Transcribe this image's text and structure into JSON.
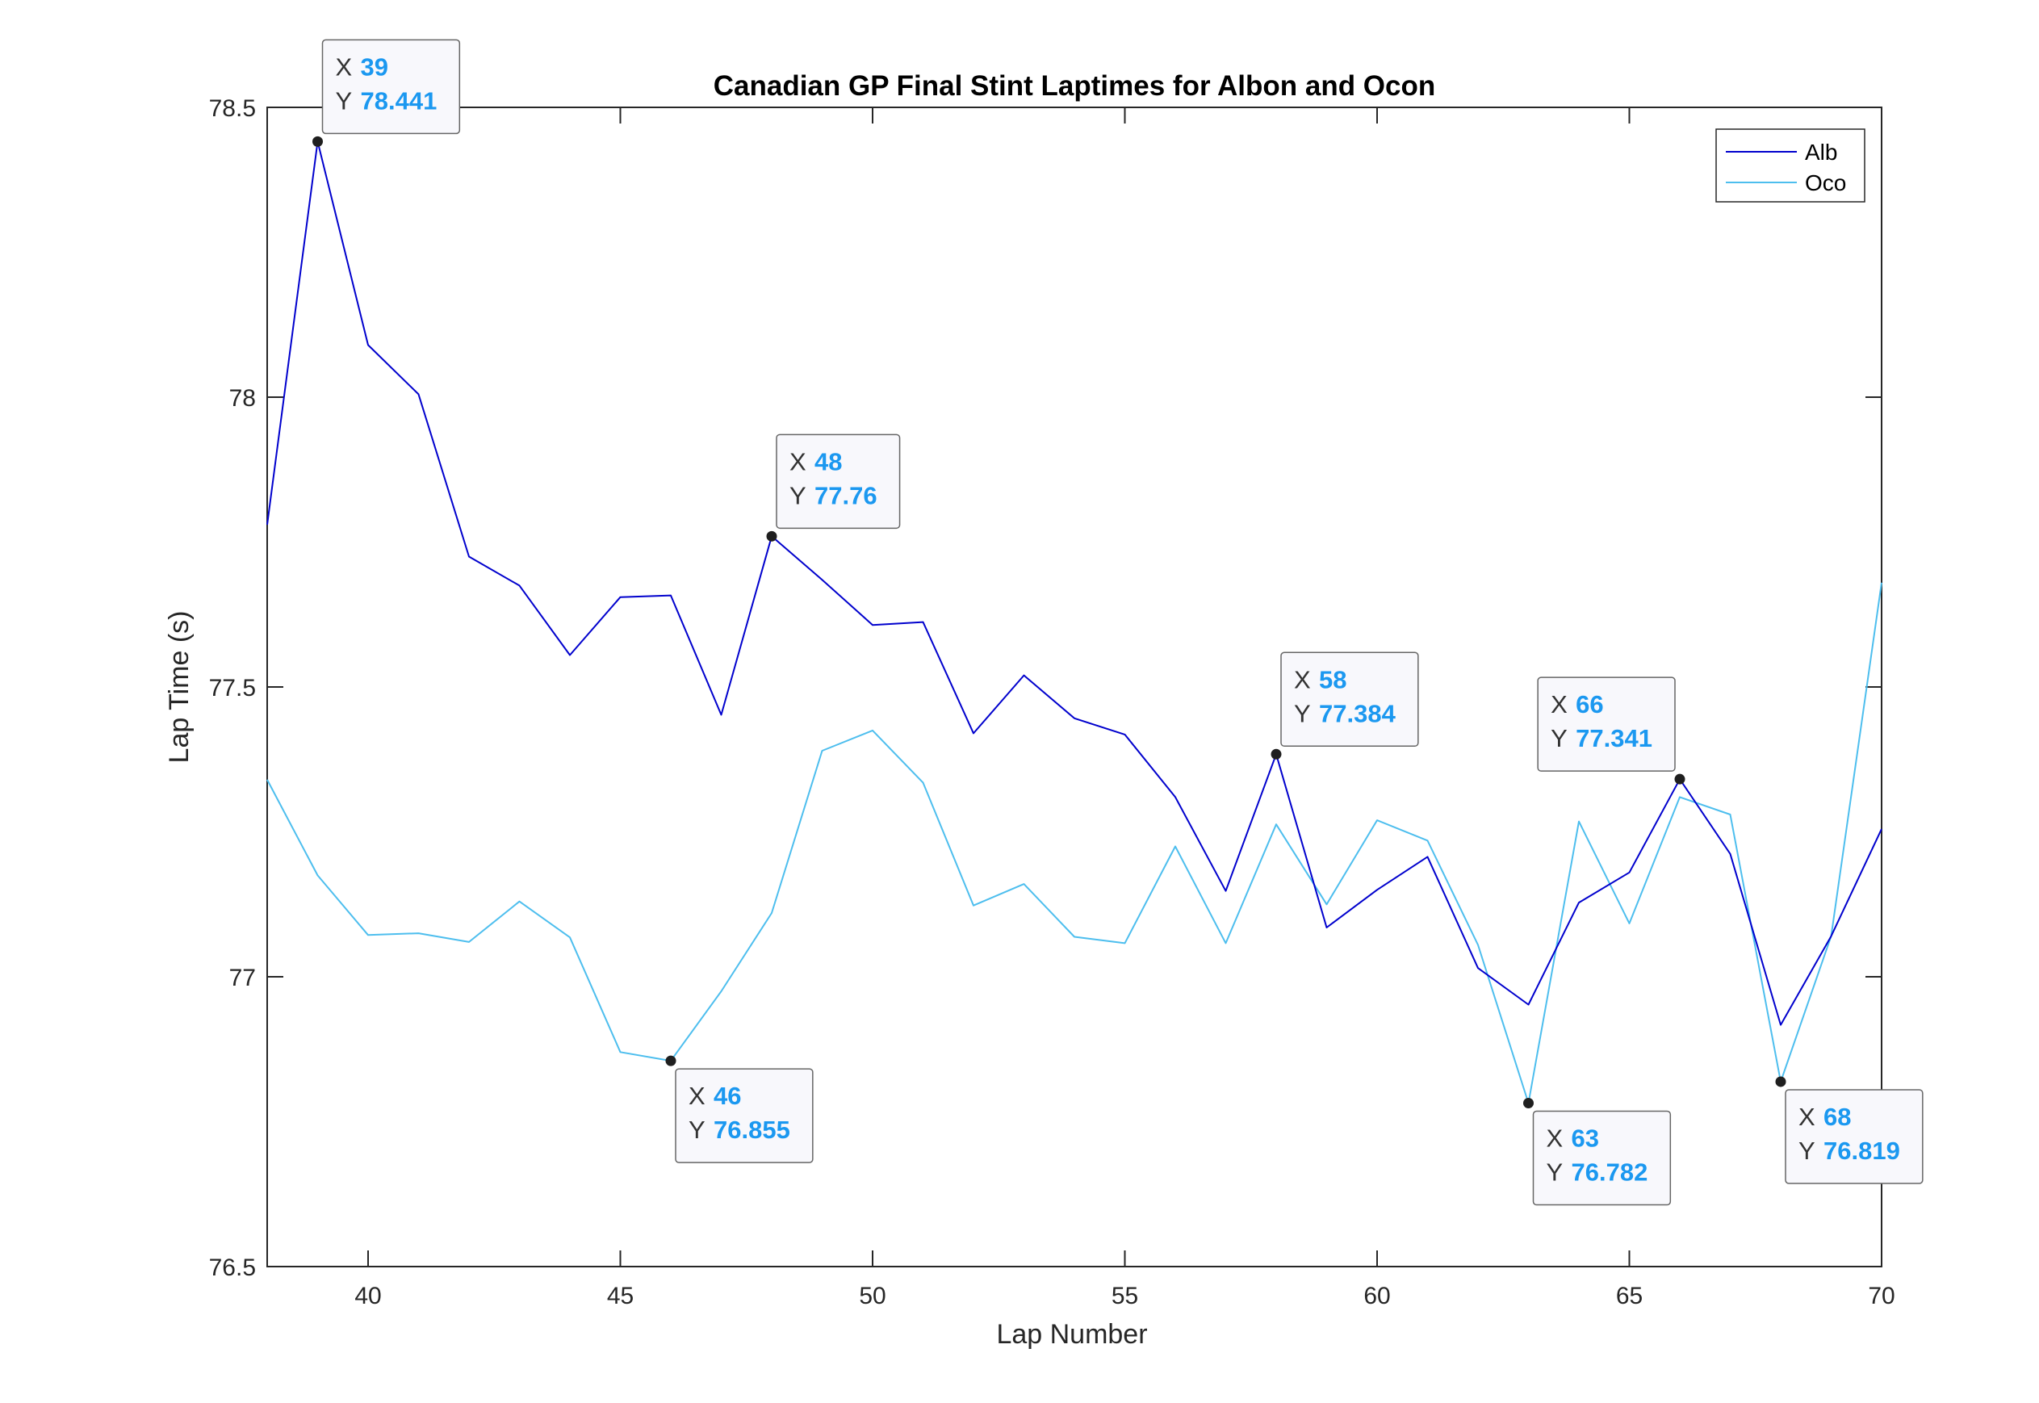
{
  "chart_data": {
    "type": "line",
    "title": "Canadian GP Final Stint Laptimes for Albon and Ocon",
    "xlabel": "Lap Number",
    "ylabel": "Lap Time (s)",
    "xlim": [
      38,
      70
    ],
    "ylim": [
      76.5,
      78.5
    ],
    "xticks": [
      40,
      45,
      50,
      55,
      60,
      65,
      70
    ],
    "yticks": [
      76.5,
      77,
      77.5,
      78,
      78.5
    ],
    "grid": false,
    "legend_position": "top-right",
    "x": [
      38,
      39,
      40,
      41,
      42,
      43,
      44,
      45,
      46,
      47,
      48,
      49,
      50,
      51,
      52,
      53,
      54,
      55,
      56,
      57,
      58,
      59,
      60,
      61,
      62,
      63,
      64,
      65,
      66,
      67,
      68,
      69,
      70
    ],
    "series": [
      {
        "name": "Alb",
        "color": "#0000cd",
        "values": [
          77.78,
          78.441,
          78.09,
          78.005,
          77.725,
          77.675,
          77.555,
          77.655,
          77.658,
          77.452,
          77.76,
          77.685,
          77.607,
          77.612,
          77.42,
          77.52,
          77.446,
          77.418,
          77.31,
          77.148,
          77.384,
          77.085,
          77.15,
          77.207,
          77.015,
          76.952,
          77.128,
          77.18,
          77.341,
          77.212,
          76.917,
          77.07,
          77.255
        ]
      },
      {
        "name": "Oco",
        "color": "#4dbeee",
        "values": [
          77.34,
          77.175,
          77.072,
          77.075,
          77.06,
          77.13,
          77.068,
          76.87,
          76.855,
          76.975,
          77.11,
          77.39,
          77.425,
          77.335,
          77.123,
          77.16,
          77.069,
          77.058,
          77.225,
          77.058,
          77.263,
          77.125,
          77.27,
          77.235,
          77.055,
          76.782,
          77.268,
          77.092,
          77.31,
          77.28,
          76.819,
          77.07,
          77.68
        ]
      }
    ],
    "datatips": [
      {
        "series": "Alb",
        "x": "39",
        "y": "78.441",
        "x_label": "X",
        "y_label": "Y"
      },
      {
        "series": "Oco",
        "x": "46",
        "y": "76.855",
        "x_label": "X",
        "y_label": "Y"
      },
      {
        "series": "Alb",
        "x": "48",
        "y": "77.76",
        "x_label": "X",
        "y_label": "Y"
      },
      {
        "series": "Alb",
        "x": "58",
        "y": "77.384",
        "x_label": "X",
        "y_label": "Y"
      },
      {
        "series": "Oco",
        "x": "63",
        "y": "76.782",
        "x_label": "X",
        "y_label": "Y"
      },
      {
        "series": "Alb",
        "x": "66",
        "y": "77.341",
        "x_label": "X",
        "y_label": "Y"
      },
      {
        "series": "Oco",
        "x": "68",
        "y": "76.819",
        "x_label": "X",
        "y_label": "Y"
      }
    ]
  }
}
